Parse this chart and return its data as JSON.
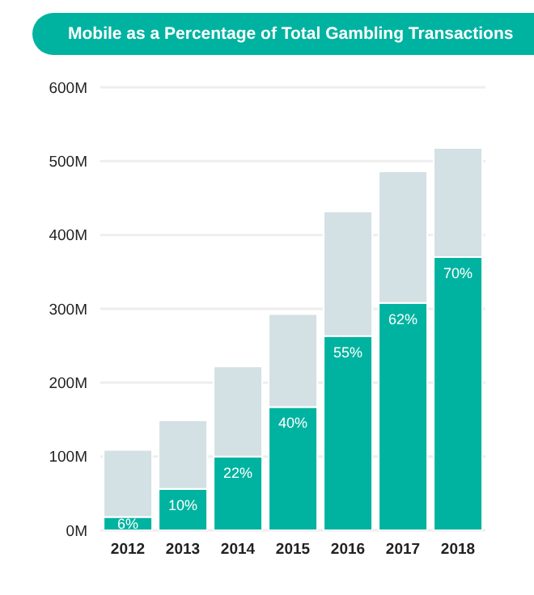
{
  "chart_data": {
    "type": "bar",
    "title": "Mobile as a Percentage of Total Gambling Transactions",
    "categories": [
      "2012",
      "2013",
      "2014",
      "2015",
      "2016",
      "2017",
      "2018"
    ],
    "stacked": true,
    "series": [
      {
        "color": "#00b3a0",
        "values": [
          18,
          56,
          100,
          167,
          263,
          308,
          370
        ]
      },
      {
        "color": "#d3e0e4",
        "values": [
          91,
          93,
          122,
          126,
          169,
          178,
          148
        ]
      }
    ],
    "annotations": [
      {
        "text": "6%",
        "x": "2012",
        "y": 18
      },
      {
        "text": "10%",
        "x": "2013",
        "y": 56
      },
      {
        "text": "22%",
        "x": "2014",
        "y": 100
      },
      {
        "text": "40%",
        "x": "2015",
        "y": 167
      },
      {
        "text": "55%",
        "x": "2016",
        "y": 263
      },
      {
        "text": "62%",
        "x": "2017",
        "y": 308
      },
      {
        "text": "70%",
        "x": "2018",
        "y": 370
      }
    ],
    "ylim": [
      0,
      600
    ],
    "yticks": [
      {
        "value": 0,
        "label": "0M"
      },
      {
        "value": 100,
        "label": "100M"
      },
      {
        "value": 200,
        "label": "200M"
      },
      {
        "value": 300,
        "label": "300M"
      },
      {
        "value": 400,
        "label": "400M"
      },
      {
        "value": 500,
        "label": "500M"
      },
      {
        "value": 600,
        "label": "600M"
      }
    ],
    "grid": "y"
  }
}
